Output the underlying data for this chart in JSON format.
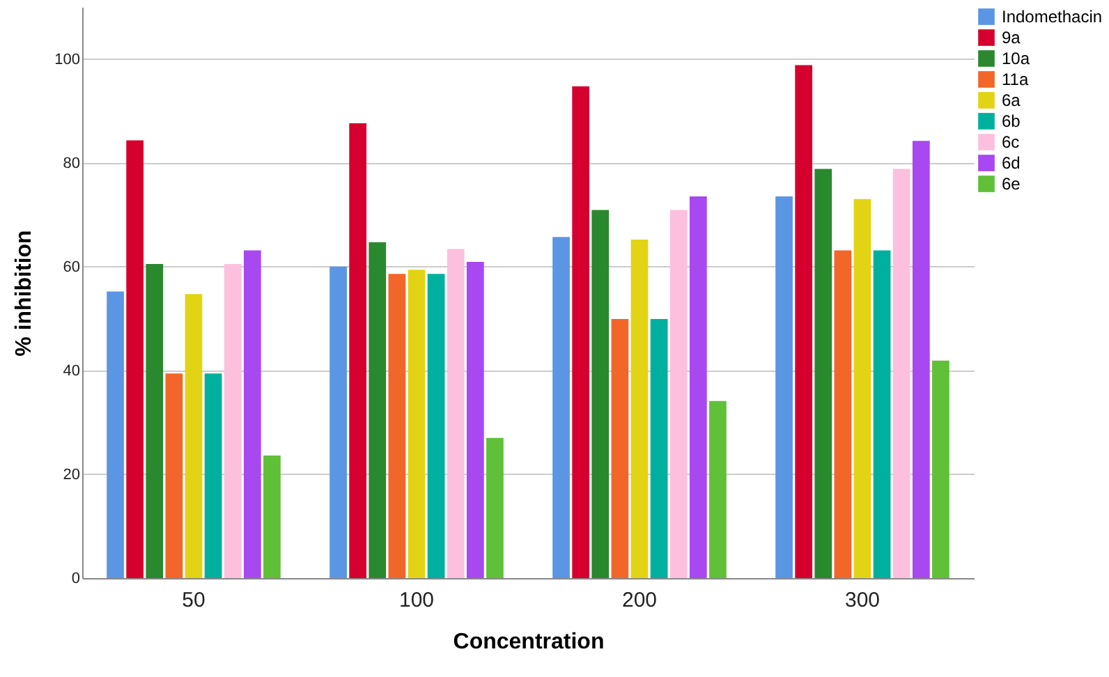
{
  "chart_data": {
    "type": "bar",
    "xlabel": "Concentration",
    "ylabel": "% inhibition",
    "categories": [
      "50",
      "100",
      "200",
      "300"
    ],
    "series": [
      {
        "name": "Indomethacin",
        "color": "#5b96e4",
        "values": [
          55.2,
          60,
          65.7,
          73.5
        ]
      },
      {
        "name": "9a",
        "color": "#d6002e",
        "values": [
          84.3,
          87.6,
          94.7,
          98.8
        ]
      },
      {
        "name": "10a",
        "color": "#2a882e",
        "values": [
          60.5,
          64.7,
          70.9,
          78.8
        ]
      },
      {
        "name": "11a",
        "color": "#f2662a",
        "values": [
          39.4,
          58.6,
          49.9,
          63.1
        ]
      },
      {
        "name": "6a",
        "color": "#e2d414",
        "values": [
          54.7,
          59.4,
          65.2,
          73.0
        ]
      },
      {
        "name": "6b",
        "color": "#00b09e",
        "values": [
          39.4,
          58.6,
          49.9,
          63.1
        ]
      },
      {
        "name": "6c",
        "color": "#fcc0de",
        "values": [
          60.5,
          63.4,
          70.9,
          78.8
        ]
      },
      {
        "name": "6d",
        "color": "#a848f0",
        "values": [
          63.1,
          60.9,
          73.5,
          84.2
        ]
      },
      {
        "name": "6e",
        "color": "#60c038",
        "values": [
          23.6,
          27.0,
          34.1,
          41.9
        ]
      }
    ],
    "ylim": [
      0,
      110
    ],
    "yticks": [
      0,
      20,
      40,
      60,
      80,
      100
    ],
    "grid": "y",
    "legend": "top right"
  }
}
